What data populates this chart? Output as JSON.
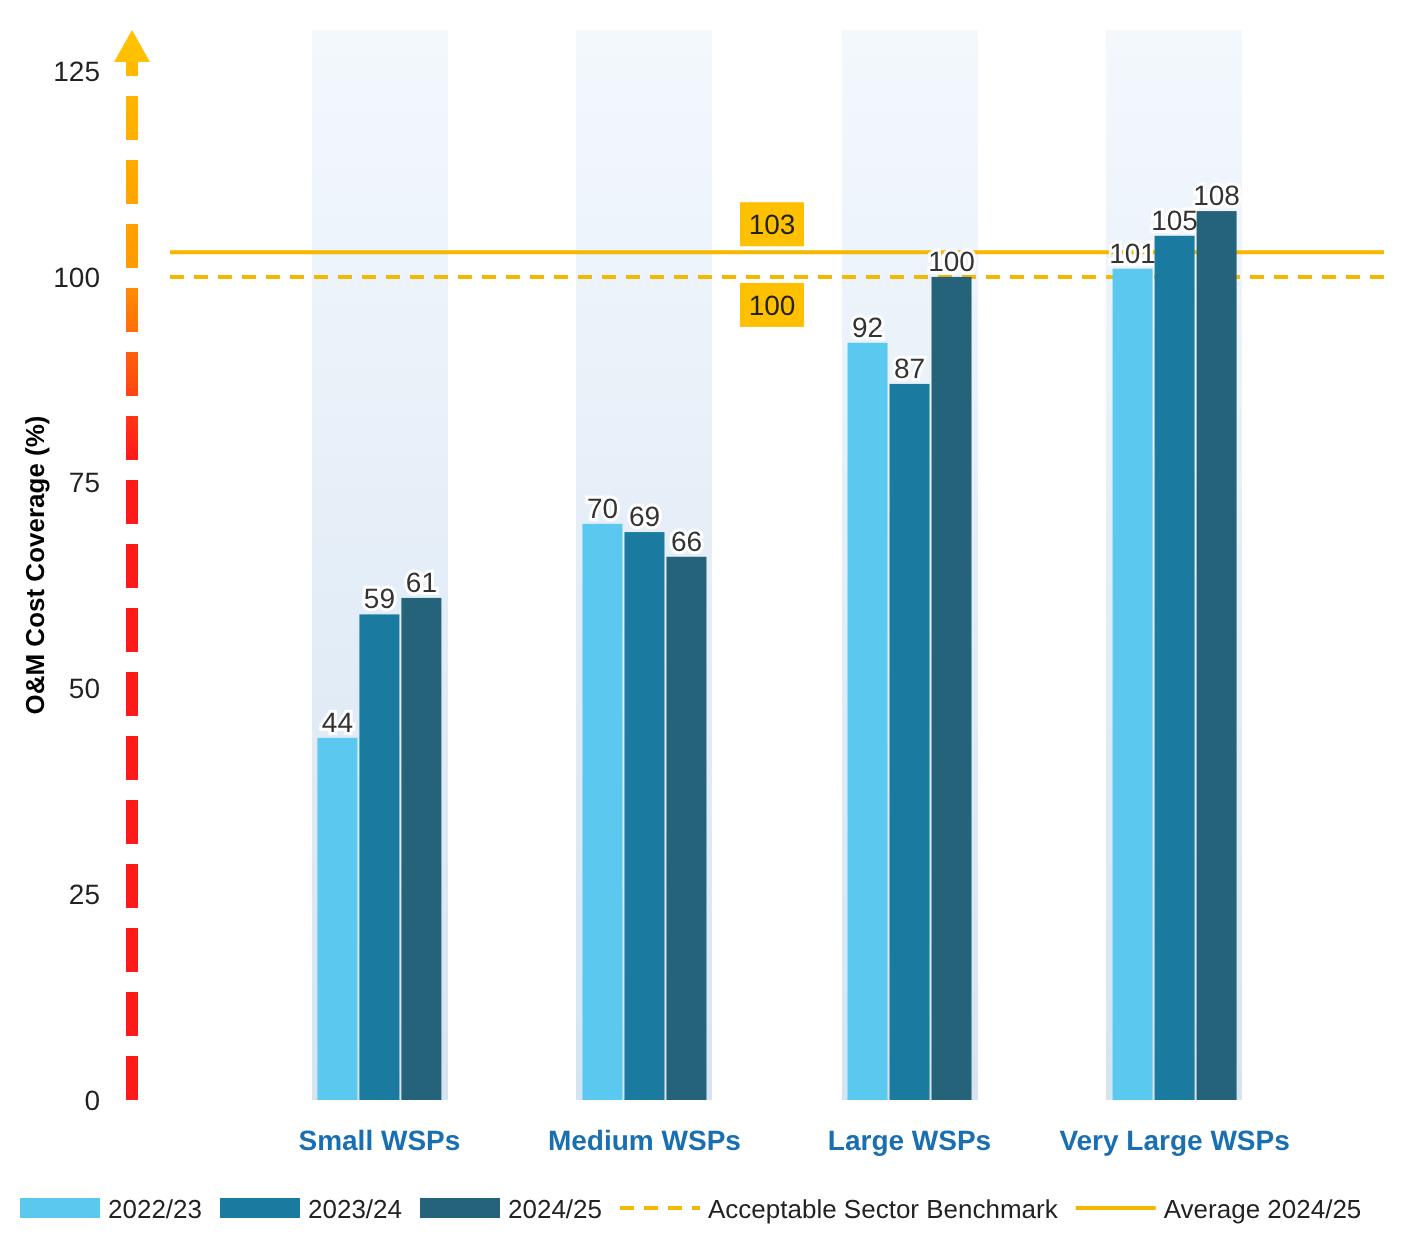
{
  "chart_data": {
    "type": "bar",
    "ylabel": "O&M Cost Coverage (%)",
    "categories": [
      "Small WSPs",
      "Medium WSPs",
      "Large WSPs",
      "Very Large WSPs"
    ],
    "series": [
      {
        "name": "2022/23",
        "color": "#5bc8f0",
        "values": [
          44,
          70,
          92,
          101
        ]
      },
      {
        "name": "2023/24",
        "color": "#1a7aa0",
        "values": [
          59,
          69,
          87,
          105
        ]
      },
      {
        "name": "2024/25",
        "color": "#25637a",
        "values": [
          61,
          66,
          100,
          108
        ]
      }
    ],
    "ylim": [
      0,
      130
    ],
    "yticks": [
      0,
      25,
      50,
      75,
      100,
      125
    ],
    "ref_lines": [
      {
        "axis": "y",
        "value": 100,
        "label": "Acceptable Sector Benchmark",
        "color": "#f5b800",
        "line_style": "dashed"
      },
      {
        "axis": "y",
        "value": 103,
        "label": "Average 2024/25",
        "color": "#f5b800",
        "line_style": "solid"
      }
    ],
    "annotations": [
      {
        "text": "100",
        "y": 100
      },
      {
        "text": "103",
        "y": 103
      }
    ],
    "data_labels": true,
    "grid": false,
    "legend": "bottom"
  }
}
